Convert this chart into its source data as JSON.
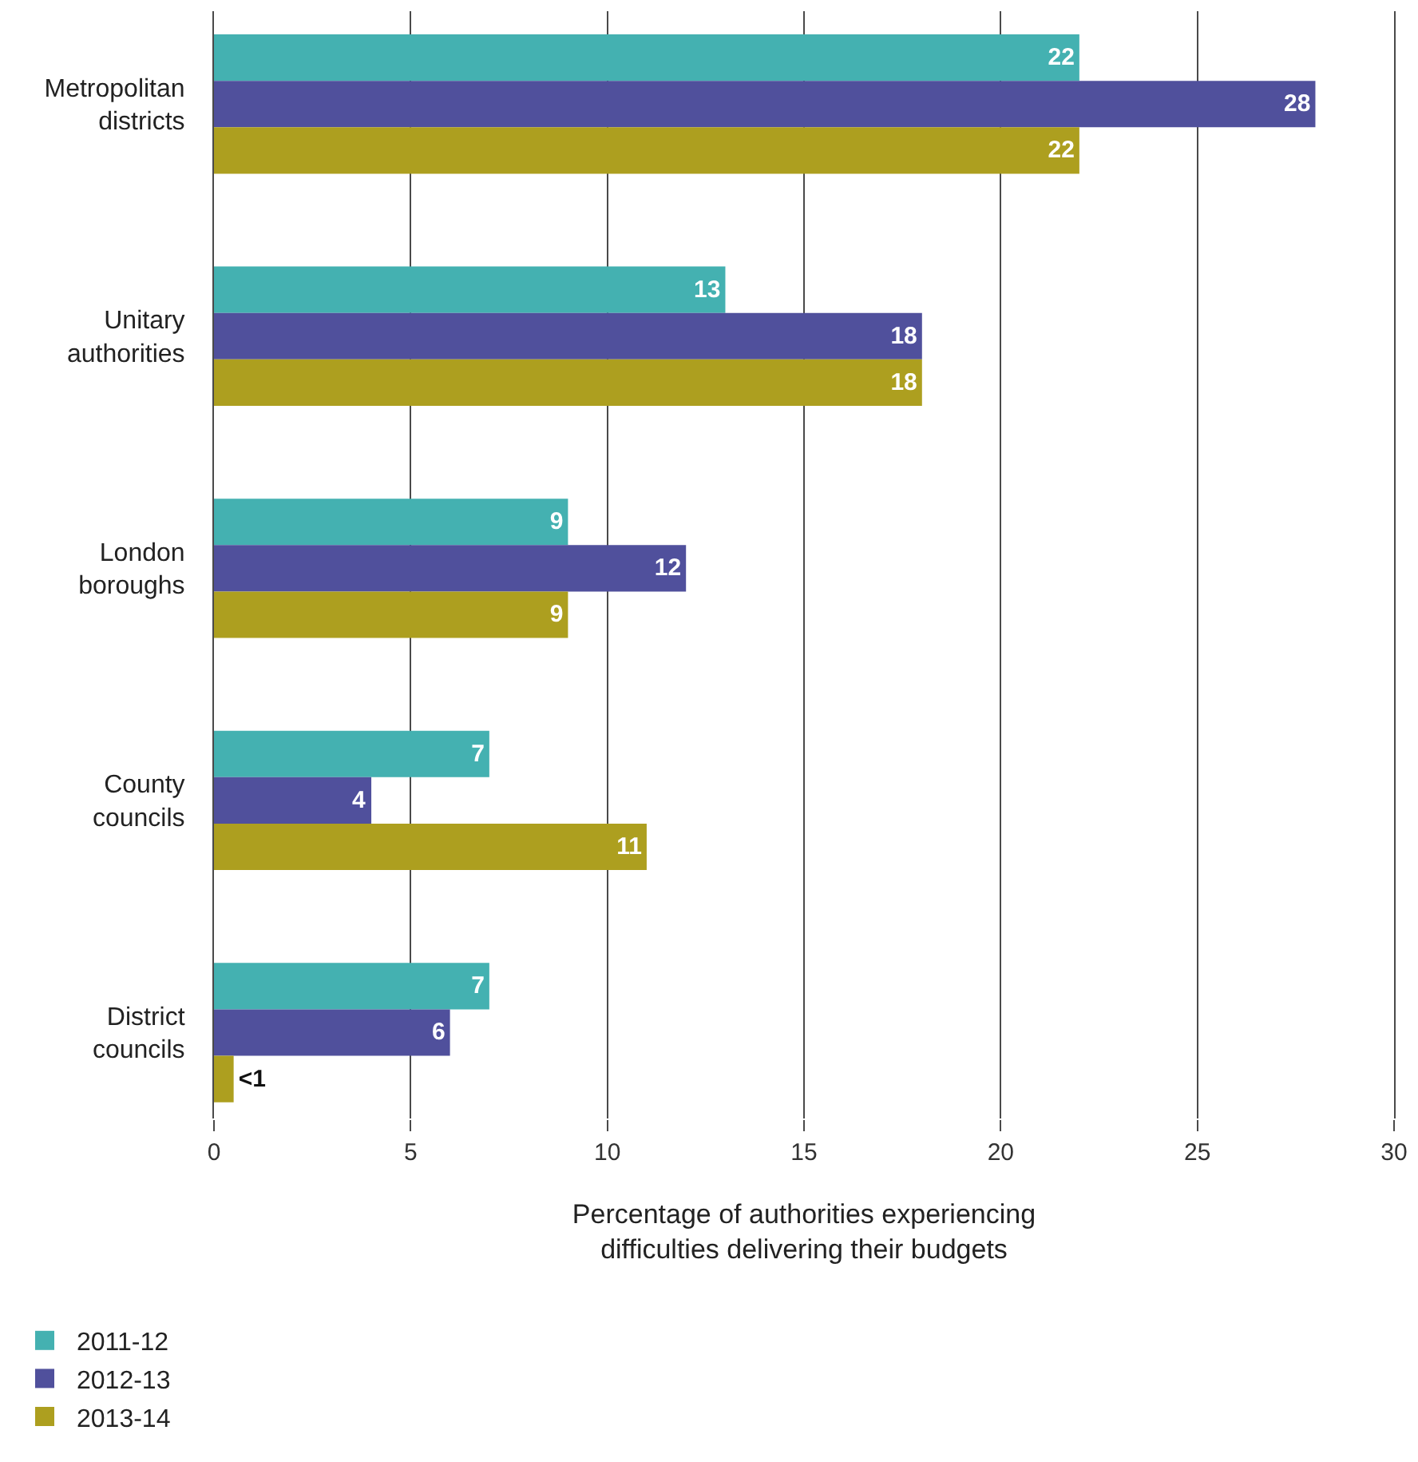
{
  "chart_data": {
    "type": "bar",
    "orientation": "horizontal",
    "xlabel": "Percentage of authorities experiencing difficulties delivering their budgets",
    "categories": [
      "Metropolitan districts",
      "Unitary authorities",
      "London boroughs",
      "County councils",
      "District councils"
    ],
    "series": [
      {
        "name": "2011-12",
        "color": "#44b1b1",
        "values": [
          22,
          13,
          9,
          7,
          7
        ],
        "value_labels": [
          "22",
          "13",
          "9",
          "7",
          "7"
        ]
      },
      {
        "name": "2012-13",
        "color": "#50509c",
        "values": [
          28,
          18,
          12,
          4,
          6
        ],
        "value_labels": [
          "28",
          "18",
          "12",
          "4",
          "6"
        ]
      },
      {
        "name": "2013-14",
        "color": "#ad9f1f",
        "values": [
          22,
          18,
          9,
          11,
          0.5
        ],
        "value_labels": [
          "22",
          "18",
          "9",
          "11",
          "<1"
        ]
      }
    ],
    "xlim": [
      0,
      30
    ],
    "xticks": [
      0,
      5,
      10,
      15,
      20,
      25,
      30
    ],
    "grid": "x",
    "legend": "bottom left"
  }
}
